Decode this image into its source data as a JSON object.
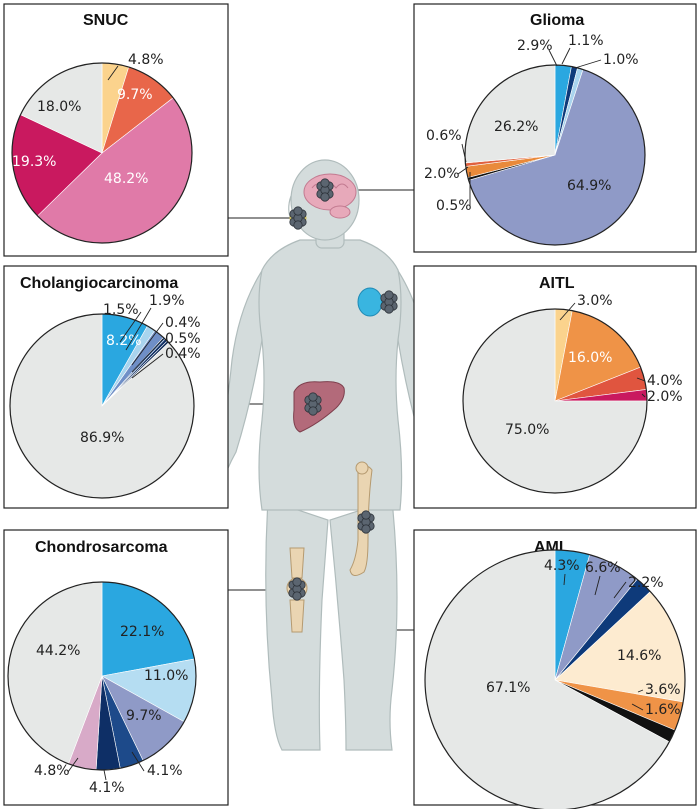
{
  "colors": {
    "body": "#d4dcdc",
    "body_outline": "#b0bcbc",
    "tumor": "#5b6570",
    "background_slice": "#e6e8e7"
  },
  "organs": [
    {
      "name": "brain-icon"
    },
    {
      "name": "nasal-cavity-icon"
    },
    {
      "name": "lymph-node-icon"
    },
    {
      "name": "liver-icon"
    },
    {
      "name": "femur-icon"
    },
    {
      "name": "knee-icon"
    }
  ],
  "chart_data": [
    {
      "type": "pie",
      "id": "snuc",
      "title": "SNUC",
      "start_angle": 0,
      "direction": "clockwise",
      "slices": [
        {
          "value": 4.8,
          "label": "4.8%",
          "color": "#fbd38d"
        },
        {
          "value": 9.7,
          "label": "9.7%",
          "color": "#e8664a"
        },
        {
          "value": 48.2,
          "label": "48.2%",
          "color": "#e07aa8"
        },
        {
          "value": 19.3,
          "label": "19.3%",
          "color": "#c9195f"
        },
        {
          "value": 18.0,
          "label": "18.0%",
          "color": "#e6e8e7"
        }
      ]
    },
    {
      "type": "pie",
      "id": "glioma",
      "title": "Glioma",
      "start_angle": 0,
      "direction": "clockwise",
      "slices": [
        {
          "value": 2.9,
          "label": "2.9%",
          "color": "#2aa7e0"
        },
        {
          "value": 1.1,
          "label": "1.1%",
          "color": "#0e3a7a"
        },
        {
          "value": 1.0,
          "label": "1.0%",
          "color": "#a9d4ee"
        },
        {
          "value": 64.9,
          "label": "64.9%",
          "color": "#8f9ac7"
        },
        {
          "value": 0.5,
          "label": "0.5%",
          "color": "#111111"
        },
        {
          "value": 2.0,
          "label": "2.0%",
          "color": "#e98a3b"
        },
        {
          "value": 0.6,
          "label": "0.6%",
          "color": "#e0613f"
        },
        {
          "value": 26.2,
          "label": "26.2%",
          "color": "#e6e8e7"
        }
      ]
    },
    {
      "type": "pie",
      "id": "cholangiocarcinoma",
      "title": "Cholangiocarcinoma",
      "start_angle": 0,
      "direction": "clockwise",
      "slices": [
        {
          "value": 8.2,
          "label": "8.2%",
          "color": "#2aa7e0"
        },
        {
          "value": 1.5,
          "label": "1.5%",
          "color": "#a9d4ee"
        },
        {
          "value": 1.9,
          "label": "1.9%",
          "color": "#6f8fc7"
        },
        {
          "value": 0.4,
          "label": "0.4%",
          "color": "#1d4a8a"
        },
        {
          "value": 0.5,
          "label": "0.5%",
          "color": "#0e2f66"
        },
        {
          "value": 0.4,
          "label": "0.4%",
          "color": "#0a2553"
        },
        {
          "value": 86.9,
          "label": "86.9%",
          "color": "#e6e8e7"
        }
      ]
    },
    {
      "type": "pie",
      "id": "aitl",
      "title": "AITL",
      "start_angle": 0,
      "direction": "clockwise",
      "slices": [
        {
          "value": 3.0,
          "label": "3.0%",
          "color": "#fbd38d"
        },
        {
          "value": 16.0,
          "label": "16.0%",
          "color": "#ef9347"
        },
        {
          "value": 4.0,
          "label": "4.0%",
          "color": "#e0553f"
        },
        {
          "value": 2.0,
          "label": "2.0%",
          "color": "#c9195f"
        },
        {
          "value": 75.0,
          "label": "75.0%",
          "color": "#e6e8e7"
        }
      ]
    },
    {
      "type": "pie",
      "id": "chondrosarcoma",
      "title": "Chondrosarcoma",
      "start_angle": 0,
      "direction": "clockwise",
      "slices": [
        {
          "value": 22.1,
          "label": "22.1%",
          "color": "#2aa7e0"
        },
        {
          "value": 11.0,
          "label": "11.0%",
          "color": "#b5ddf2"
        },
        {
          "value": 9.7,
          "label": "9.7%",
          "color": "#8f9ac7"
        },
        {
          "value": 4.1,
          "label": "4.1%",
          "color": "#1d4a8a"
        },
        {
          "value": 4.1,
          "label": "4.1%",
          "color": "#0e2f66"
        },
        {
          "value": 4.8,
          "label": "4.8%",
          "color": "#d8aac8"
        },
        {
          "value": 44.2,
          "label": "44.2%",
          "color": "#e6e8e7"
        }
      ]
    },
    {
      "type": "pie",
      "id": "aml",
      "title": "AML",
      "start_angle": 0,
      "direction": "clockwise",
      "slices": [
        {
          "value": 4.3,
          "label": "4.3%",
          "color": "#2aa7e0"
        },
        {
          "value": 6.6,
          "label": "6.6%",
          "color": "#8f9ac7"
        },
        {
          "value": 2.2,
          "label": "2.2%",
          "color": "#0e3a7a"
        },
        {
          "value": 14.6,
          "label": "14.6%",
          "color": "#fdebd0"
        },
        {
          "value": 3.6,
          "label": "3.6%",
          "color": "#ef9347"
        },
        {
          "value": 1.6,
          "label": "1.6%",
          "color": "#111111"
        },
        {
          "value": 67.1,
          "label": "67.1%",
          "color": "#e6e8e7"
        }
      ]
    }
  ]
}
